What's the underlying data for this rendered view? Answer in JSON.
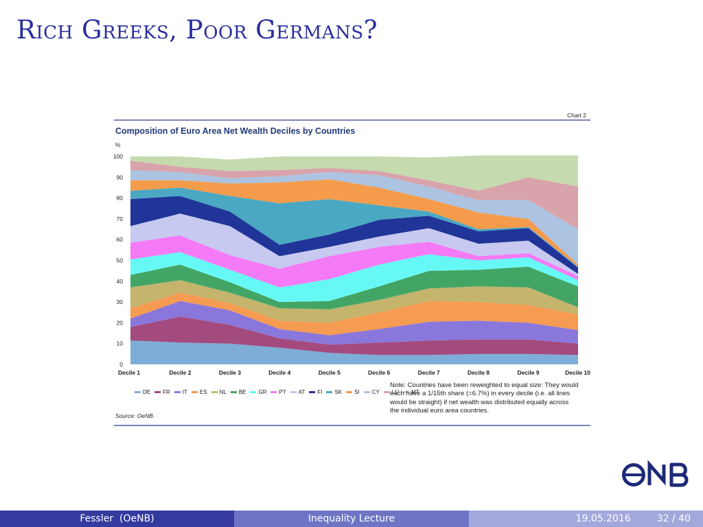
{
  "slide": {
    "title": "Rich Greeks, Poor Germans?"
  },
  "figure": {
    "chart_label": "Chart 2",
    "title": "Composition of Euro Area Net Wealth Deciles by Countries",
    "y_unit": "%",
    "note": "Note: Countries have been reweighted to equal size: They would each have a 1/15th share (=6.7%) in every decile (i.e. all lines would be straight) if net wealth was distributed equally across the individual euro area countries.",
    "source": "Source: OeNB."
  },
  "chart_data": {
    "type": "area",
    "stacked": true,
    "categories": [
      "Decile 1",
      "Decile 2",
      "Decile 3",
      "Decile 4",
      "Decile 5",
      "Decile 6",
      "Decile 7",
      "Decile 8",
      "Decile 9",
      "Decile 10"
    ],
    "title": "Composition of Euro Area Net Wealth Deciles by Countries",
    "ylabel": "%",
    "ylim": [
      0,
      100
    ],
    "yticks": [
      0,
      10,
      20,
      30,
      40,
      50,
      60,
      70,
      80,
      90,
      100
    ],
    "grid": false,
    "legend_position": "bottom",
    "series": [
      {
        "name": "DE",
        "color": "#7eaed8",
        "values": [
          11.5,
          10.5,
          10,
          8,
          5.5,
          4.5,
          4.5,
          5,
          5,
          4.5
        ]
      },
      {
        "name": "FR",
        "color": "#a34b7e",
        "values": [
          6.5,
          12.5,
          9,
          4.5,
          4,
          6,
          7,
          7,
          7,
          5.5
        ]
      },
      {
        "name": "IT",
        "color": "#8a77db",
        "values": [
          4,
          7.5,
          7,
          4.5,
          4.5,
          6.5,
          9,
          9,
          8,
          6.5
        ]
      },
      {
        "name": "ES",
        "color": "#f59b52",
        "values": [
          5,
          4,
          3.5,
          4,
          6,
          8,
          10,
          9,
          8.5,
          7.5
        ]
      },
      {
        "name": "NL",
        "color": "#c4b46c",
        "values": [
          10,
          6,
          5,
          6,
          6.5,
          6,
          6,
          7.5,
          8.5,
          3.5
        ]
      },
      {
        "name": "BE",
        "color": "#43a565",
        "values": [
          6,
          7.5,
          5,
          3,
          4,
          6.5,
          8.5,
          8,
          10,
          10
        ]
      },
      {
        "name": "GR",
        "color": "#66f8f4",
        "values": [
          7.5,
          6,
          6,
          7,
          10.5,
          10.5,
          8,
          4.5,
          4.5,
          3
        ]
      },
      {
        "name": "PT",
        "color": "#f57af5",
        "values": [
          8,
          8,
          7,
          9,
          11,
          8.5,
          6,
          2,
          2,
          2
        ]
      },
      {
        "name": "AT",
        "color": "#c7c9f1",
        "values": [
          8,
          10.5,
          14,
          6,
          4.5,
          5,
          6.5,
          6,
          6,
          1
        ]
      },
      {
        "name": "FI",
        "color": "#213598",
        "values": [
          13,
          8.5,
          7,
          5.5,
          6,
          8,
          6,
          6,
          6,
          3
        ]
      },
      {
        "name": "SK",
        "color": "#4aa8c3",
        "values": [
          4,
          4,
          7.5,
          20,
          17,
          7,
          2,
          1,
          0.5,
          0.5
        ]
      },
      {
        "name": "SI",
        "color": "#f59b4c",
        "values": [
          5,
          3.5,
          6,
          10,
          9.5,
          8.5,
          6,
          8,
          4,
          1
        ]
      },
      {
        "name": "CY",
        "color": "#acc3e1",
        "values": [
          5,
          4,
          2.5,
          3,
          3.5,
          6,
          6,
          6,
          9,
          17
        ]
      },
      {
        "name": "LU",
        "color": "#d8a3aa",
        "values": [
          4.5,
          2.5,
          3.5,
          3,
          2,
          2,
          3,
          4.5,
          11,
          20.5
        ]
      },
      {
        "name": "MT",
        "color": "#c5daae",
        "values": [
          2,
          5,
          5.5,
          6.5,
          5.5,
          7,
          11,
          17,
          10.5,
          15
        ]
      }
    ]
  },
  "footer": {
    "author": "Fessler  (OeNB)",
    "lecture": "Inequality Lecture",
    "date": "19.05.2016",
    "page": "32 / 40"
  },
  "logo": {
    "text": "ONB"
  }
}
